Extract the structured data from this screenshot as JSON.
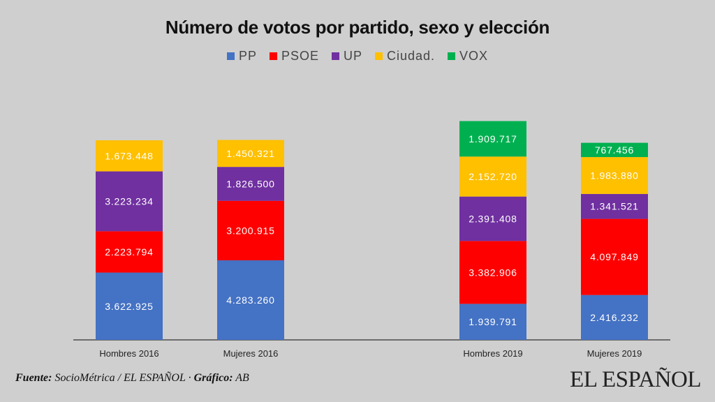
{
  "chart_data": {
    "type": "bar",
    "stacked": true,
    "title": "Número de votos por partido, sexo y elección",
    "categories": [
      "Hombres 2016",
      "Mujeres 2016",
      "Hombres 2019",
      "Mujeres 2019"
    ],
    "series": [
      {
        "name": "PP",
        "color": "#4472c4",
        "values": [
          3622925,
          4283260,
          1939791,
          2416232
        ],
        "labels": [
          "3.622.925",
          "4.283.260",
          "1.939.791",
          "2.416.232"
        ]
      },
      {
        "name": "PSOE",
        "color": "#ff0000",
        "values": [
          2223794,
          3200915,
          3382906,
          4097849
        ],
        "labels": [
          "2.223.794",
          "3.200.915",
          "3.382.906",
          "4.097.849"
        ]
      },
      {
        "name": "UP",
        "color": "#7030a0",
        "values": [
          3223234,
          1826500,
          2391408,
          1341521
        ],
        "labels": [
          "3.223.234",
          "1.826.500",
          "2.391.408",
          "1.341.521"
        ]
      },
      {
        "name": "Ciudad.",
        "color": "#ffc000",
        "values": [
          1673448,
          1450321,
          2152720,
          1983880
        ],
        "labels": [
          "1.673.448",
          "1.450.321",
          "2.152.720",
          "1.983.880"
        ]
      },
      {
        "name": "VOX",
        "color": "#00b050",
        "values": [
          0,
          0,
          1909717,
          767456
        ],
        "labels": [
          "",
          "",
          "1.909.717",
          "767.456"
        ]
      }
    ],
    "ylim": [
      0,
      11500000
    ],
    "xlabel": "",
    "ylabel": "",
    "legend_position": "top"
  },
  "footer": {
    "source_label": "Fuente:",
    "source_text": "SocioMétrica / EL ESPAÑOL ·",
    "graphic_label": "Gráfico:",
    "graphic_text": "AB"
  },
  "brand": "EL ESPAÑOL"
}
